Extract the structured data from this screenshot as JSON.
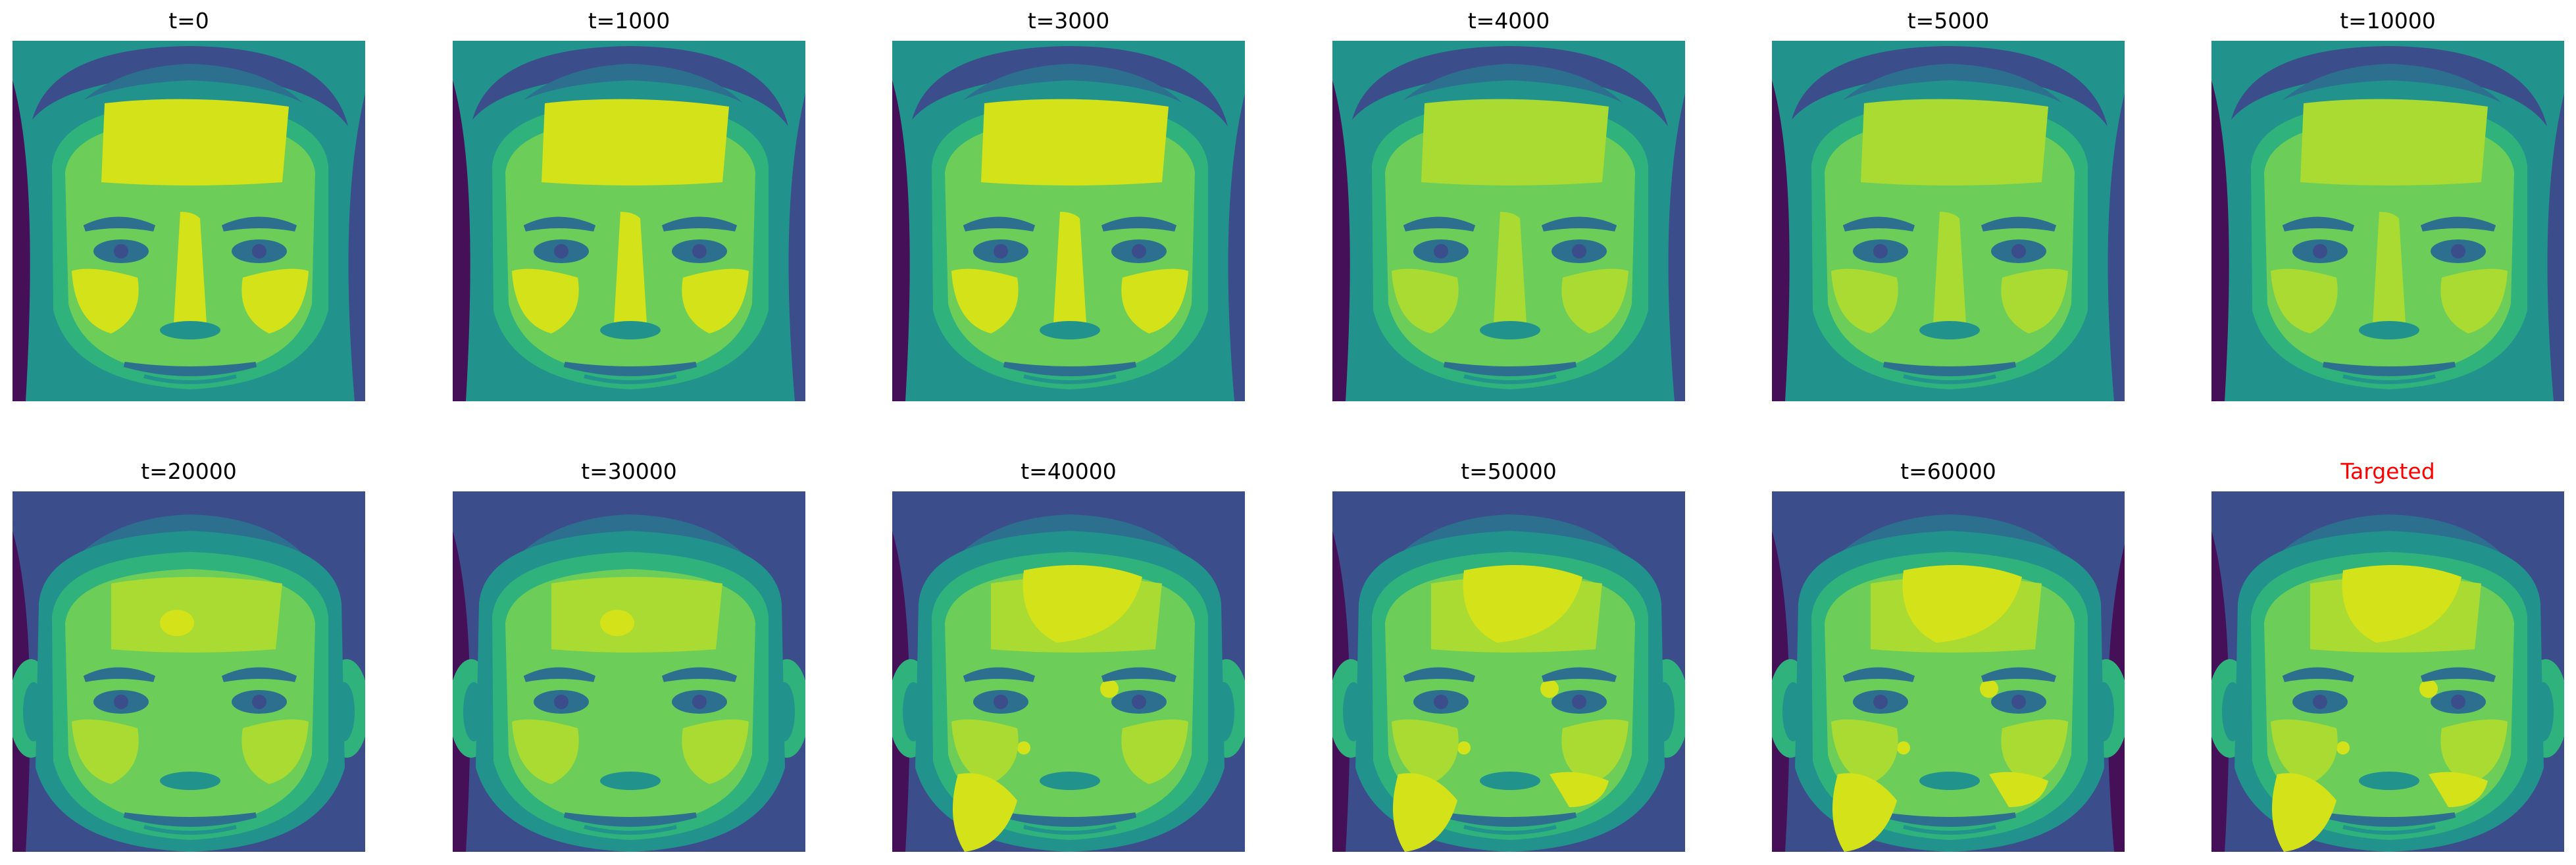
{
  "colors": {
    "background": "#ffffff",
    "title_text": "#000000",
    "target_title_text": "#ff0000",
    "colormap_low": "#440154",
    "colormap_high": "#dde318"
  },
  "panels": [
    {
      "title": "t=0",
      "time_step": 0,
      "kind": "generated"
    },
    {
      "title": "t=1000",
      "time_step": 1000,
      "kind": "generated"
    },
    {
      "title": "t=3000",
      "time_step": 3000,
      "kind": "generated"
    },
    {
      "title": "t=4000",
      "time_step": 4000,
      "kind": "generated"
    },
    {
      "title": "t=5000",
      "time_step": 5000,
      "kind": "generated"
    },
    {
      "title": "t=10000",
      "time_step": 10000,
      "kind": "generated"
    },
    {
      "title": "t=20000",
      "time_step": 20000,
      "kind": "generated"
    },
    {
      "title": "t=30000",
      "time_step": 30000,
      "kind": "generated"
    },
    {
      "title": "t=40000",
      "time_step": 40000,
      "kind": "generated"
    },
    {
      "title": "t=50000",
      "time_step": 50000,
      "kind": "generated"
    },
    {
      "title": "t=60000",
      "time_step": 60000,
      "kind": "generated"
    },
    {
      "title": "Targeted",
      "kind": "target"
    }
  ]
}
